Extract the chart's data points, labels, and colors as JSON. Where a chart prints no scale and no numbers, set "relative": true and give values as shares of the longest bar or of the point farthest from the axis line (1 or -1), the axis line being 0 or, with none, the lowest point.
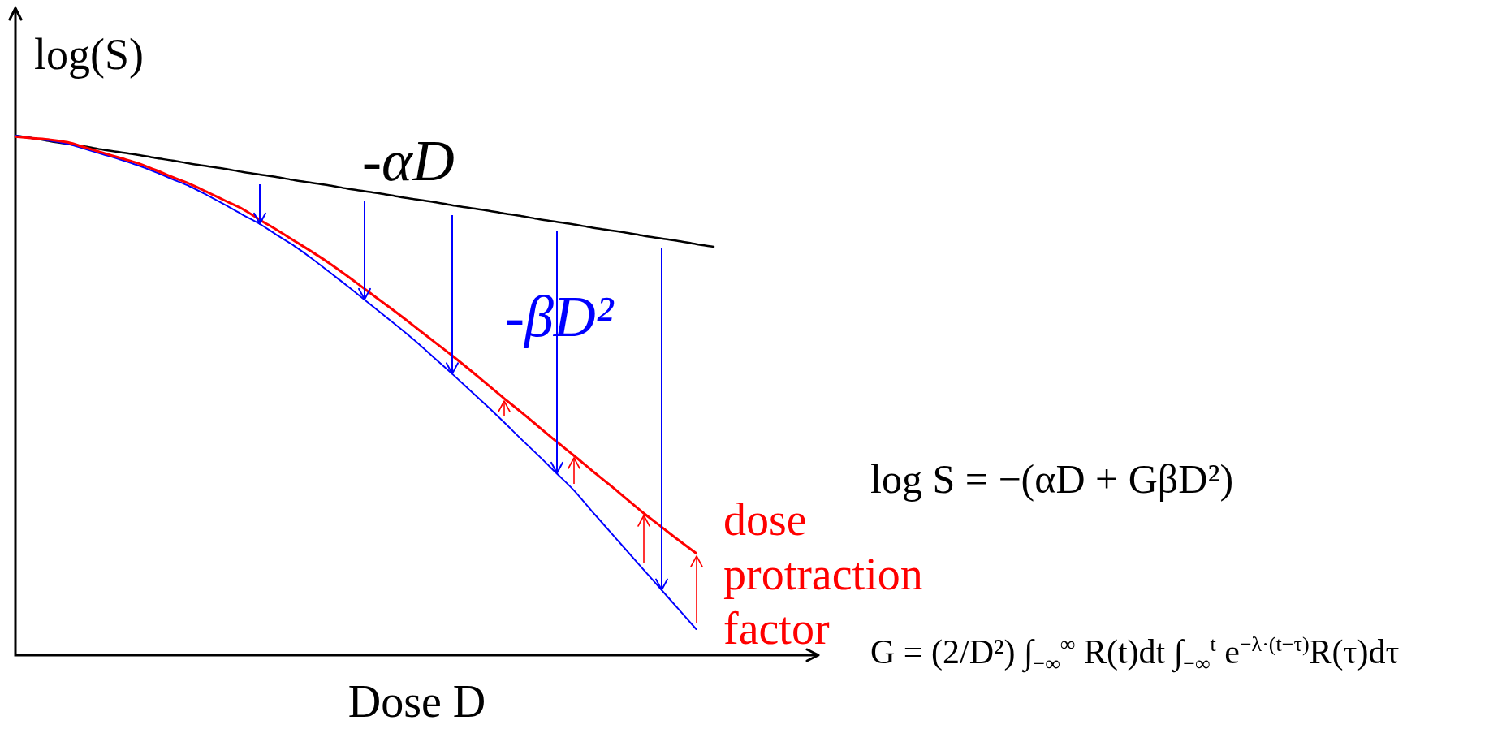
{
  "chart_data": {
    "type": "line",
    "xlabel": "Dose D",
    "ylabel": "log(S)",
    "relative": true,
    "legend": false,
    "grid": false,
    "marker": "none",
    "categories": [
      null,
      null,
      null,
      null,
      null,
      null,
      null,
      null,
      null,
      null,
      null,
      null,
      null,
      null,
      null,
      null,
      null,
      null,
      null,
      null,
      null,
      null,
      null,
      null,
      null,
      null,
      null,
      null,
      null,
      null,
      null,
      null,
      null,
      null,
      null,
      null,
      null,
      null,
      null,
      null,
      null,
      null,
      null,
      null,
      null,
      null,
      null
    ],
    "series": [
      {
        "color": "#000000",
        "values": [
          1.0,
          0.995,
          0.989,
          0.984,
          0.979,
          0.973,
          0.968,
          0.963,
          0.957,
          0.952,
          0.946,
          0.941,
          0.936,
          0.93,
          0.925,
          0.92,
          0.914,
          0.909,
          0.904,
          0.898,
          0.893,
          0.888,
          0.882,
          0.877,
          0.872,
          0.866,
          0.861,
          0.856,
          0.85,
          0.845,
          0.839,
          0.834,
          0.829,
          0.823,
          0.818,
          0.813,
          0.807,
          0.802,
          0.797,
          0.791,
          0.786,
          null,
          null,
          null,
          null,
          null,
          null
        ]
      },
      {
        "color": "#0000ff",
        "values": [
          1.0,
          0.995,
          0.99,
          0.984,
          0.974,
          0.964,
          0.954,
          0.943,
          0.93,
          0.916,
          0.902,
          0.885,
          0.867,
          0.848,
          0.83,
          0.808,
          0.787,
          0.763,
          0.737,
          0.711,
          0.684,
          0.657,
          0.63,
          0.602,
          0.572,
          0.542,
          0.511,
          0.48,
          0.448,
          0.415,
          0.383,
          0.35,
          0.317,
          0.278,
          0.24,
          0.202,
          0.164,
          0.126,
          0.088,
          0.05,
          null,
          null,
          null,
          null,
          null,
          null,
          null
        ]
      },
      {
        "color": "#ff0000",
        "values": [
          0.998,
          0.995,
          0.992,
          0.987,
          0.977,
          0.967,
          0.957,
          0.947,
          0.934,
          0.92,
          0.907,
          0.891,
          0.875,
          0.859,
          0.838,
          0.818,
          0.797,
          0.776,
          0.754,
          0.73,
          0.705,
          0.68,
          0.655,
          0.629,
          0.603,
          0.577,
          0.55,
          0.522,
          0.494,
          0.467,
          0.439,
          0.411,
          0.384,
          0.356,
          0.329,
          0.301,
          0.273,
          0.247,
          0.221,
          0.196,
          null,
          null,
          null,
          null,
          null,
          null,
          null
        ]
      }
    ],
    "annotations": [
      "-αD",
      "-βD²",
      "dose protraction factor",
      "log S = −(αD + GβD²)",
      "G = (2/D²) ∫$_{−∞}$$^{∞}$ R(t)dt ∫$_{−∞}$$^{t}$ e$^{−λ·(t−τ)}$R(τ)dτ"
    ]
  }
}
